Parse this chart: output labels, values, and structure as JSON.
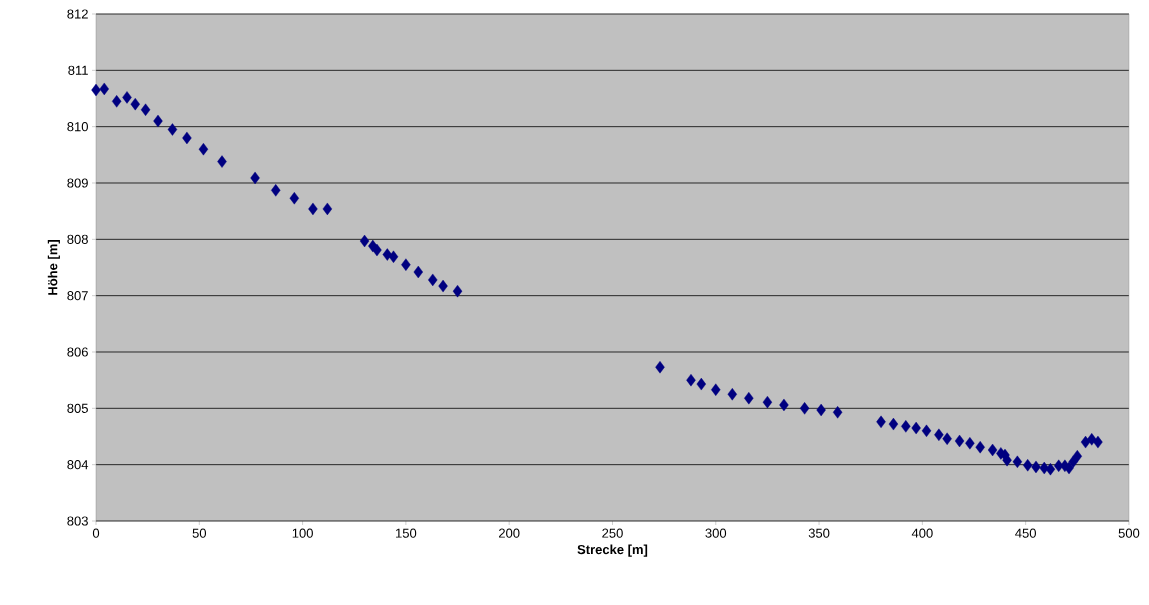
{
  "chart_data": {
    "type": "scatter",
    "xlabel": "Strecke [m]",
    "ylabel": "Höhe [m]",
    "xlim": [
      0,
      500
    ],
    "ylim": [
      803,
      812
    ],
    "xticks": [
      0,
      50,
      100,
      150,
      200,
      250,
      300,
      350,
      400,
      450,
      500
    ],
    "yticks": [
      803,
      804,
      805,
      806,
      807,
      808,
      809,
      810,
      811,
      812
    ],
    "grid": "y",
    "marker": "diamond",
    "series": [
      {
        "color": "#000080",
        "x": [
          0,
          4,
          10,
          15,
          19,
          24,
          30,
          37,
          44,
          52,
          61,
          77,
          87,
          96,
          105,
          112,
          130,
          134,
          136,
          141,
          144,
          150,
          156,
          163,
          168,
          175,
          273,
          288,
          293,
          300,
          308,
          316,
          325,
          333,
          343,
          351,
          359,
          380,
          386,
          392,
          397,
          402,
          408,
          412,
          418,
          423,
          428,
          434,
          438,
          440,
          441,
          446,
          451,
          455,
          459,
          462,
          466,
          469,
          471,
          473,
          475,
          479,
          482,
          485
        ],
        "values": [
          810.65,
          810.67,
          810.45,
          810.52,
          810.4,
          810.3,
          810.1,
          809.95,
          809.8,
          809.6,
          809.38,
          809.09,
          808.87,
          808.73,
          808.54,
          808.54,
          807.97,
          807.88,
          807.81,
          807.73,
          807.69,
          807.55,
          807.42,
          807.28,
          807.17,
          807.08,
          805.73,
          805.5,
          805.43,
          805.33,
          805.25,
          805.18,
          805.11,
          805.06,
          805.0,
          804.97,
          804.93,
          804.76,
          804.72,
          804.68,
          804.65,
          804.6,
          804.53,
          804.46,
          804.42,
          804.38,
          804.31,
          804.26,
          804.2,
          804.17,
          804.08,
          804.05,
          803.99,
          803.96,
          803.94,
          803.92,
          803.98,
          803.98,
          803.94,
          804.05,
          804.15,
          804.4,
          804.45,
          804.4
        ]
      }
    ]
  }
}
